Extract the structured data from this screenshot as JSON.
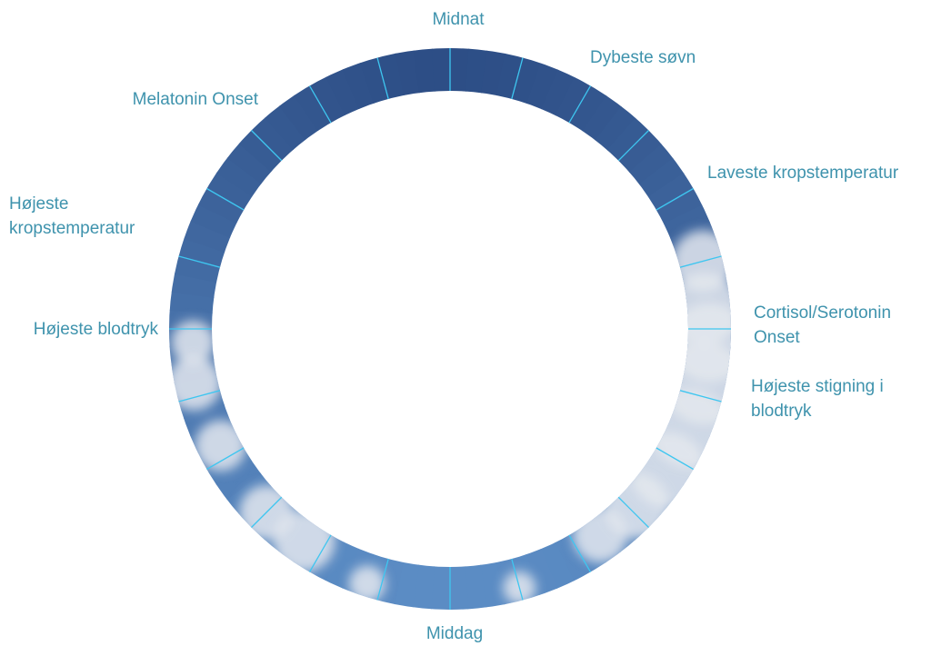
{
  "diagram": {
    "hours_on_dial": 24,
    "labels": {
      "midnight": "Midnat",
      "deepest_sleep": "Dybeste søvn",
      "lowest_body_temp": "Laveste kropstemperatur",
      "cortisol_onset": [
        "Cortisol/Serotonin",
        "Onset"
      ],
      "highest_bp_rise": [
        "Højeste stigning i",
        "blodtryk"
      ],
      "noon": "Middag",
      "highest_bp": "Højeste blodtryk",
      "highest_body_temp": [
        "Højeste",
        "kropstemperatur"
      ],
      "melatonin_onset": "Melatonin Onset"
    },
    "colors": {
      "label_text": "#3f93ad",
      "tick": "#3ec6f0",
      "night_sky": "#2d4e86",
      "day_sky": "#5b8cc4",
      "cloud": "#e4e8ef"
    }
  }
}
